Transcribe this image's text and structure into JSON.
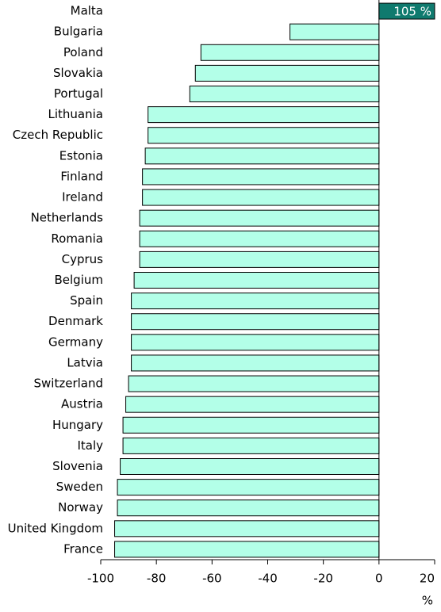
{
  "chart_data": {
    "type": "bar",
    "orientation": "horizontal",
    "x_label": "%",
    "categories": [
      "Malta",
      "Bulgaria",
      "Poland",
      "Slovakia",
      "Portugal",
      "Lithuania",
      "Czech Republic",
      "Estonia",
      "Finland",
      "Ireland",
      "Netherlands",
      "Romania",
      "Cyprus",
      "Belgium",
      "Spain",
      "Denmark",
      "Germany",
      "Latvia",
      "Switzerland",
      "Austria",
      "Hungary",
      "Italy",
      "Slovenia",
      "Sweden",
      "Norway",
      "United Kingdom",
      "France"
    ],
    "values": [
      105,
      -32,
      -64,
      -66,
      -68,
      -83,
      -83,
      -84,
      -85,
      -85,
      -86,
      -86,
      -86,
      -88,
      -89,
      -89,
      -89,
      -89,
      -90,
      -91,
      -92,
      -92,
      -93,
      -94,
      -94,
      -95,
      -95
    ],
    "value_labels": [
      "105 %",
      null,
      null,
      null,
      null,
      null,
      null,
      null,
      null,
      null,
      null,
      null,
      null,
      null,
      null,
      null,
      null,
      null,
      null,
      null,
      null,
      null,
      null,
      null,
      null,
      null,
      null
    ],
    "colors": [
      "#0f7a6e",
      "#b3ffe8",
      "#b3ffe8",
      "#b3ffe8",
      "#b3ffe8",
      "#b3ffe8",
      "#b3ffe8",
      "#b3ffe8",
      "#b3ffe8",
      "#b3ffe8",
      "#b3ffe8",
      "#b3ffe8",
      "#b3ffe8",
      "#b3ffe8",
      "#b3ffe8",
      "#b3ffe8",
      "#b3ffe8",
      "#b3ffe8",
      "#b3ffe8",
      "#b3ffe8",
      "#b3ffe8",
      "#b3ffe8",
      "#b3ffe8",
      "#b3ffe8",
      "#b3ffe8",
      "#b3ffe8",
      "#b3ffe8"
    ],
    "xlim": [
      -100,
      20
    ],
    "xticks": [
      -100,
      -80,
      -60,
      -40,
      -20,
      0,
      20
    ],
    "grid": false
  }
}
